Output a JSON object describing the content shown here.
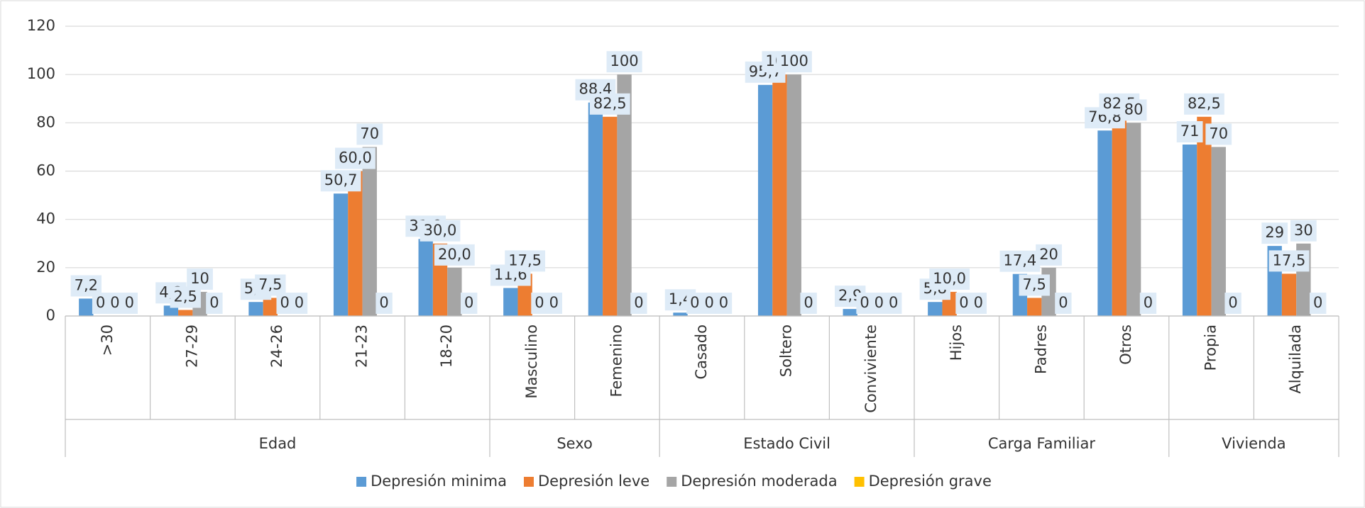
{
  "chart_data": {
    "type": "bar",
    "groups": [
      {
        "name": "Edad",
        "categories": [
          ">30",
          "27-29",
          "24-26",
          "21-23",
          "18-20"
        ]
      },
      {
        "name": "Sexo",
        "categories": [
          "Masculino",
          "Femenino"
        ]
      },
      {
        "name": "Estado Civil",
        "categories": [
          "Casado",
          "Soltero",
          "Conviviente"
        ]
      },
      {
        "name": "Carga  Familiar",
        "categories": [
          "Hijos",
          "Padres",
          "Otros"
        ]
      },
      {
        "name": "Vivienda",
        "categories": [
          "Propia",
          "Alquilada"
        ]
      }
    ],
    "series": [
      {
        "name": "Depresión minima",
        "color": "#5b9bd5",
        "values": [
          7.2,
          4.3,
          5.8,
          50.7,
          31.9,
          11.6,
          88.4,
          1.4,
          95.7,
          2.9,
          5.8,
          17.4,
          76.8,
          71,
          29
        ],
        "value_labels": [
          "7,2",
          "4,3",
          "5,8",
          "50,7",
          "31,9",
          "11,6",
          "88,4",
          "1,4",
          "95,7",
          "2,9",
          "5,8",
          "17,4",
          "76,8",
          "71",
          "29"
        ]
      },
      {
        "name": "Depresión leve",
        "color": "#ed7d31",
        "values": [
          0,
          2.5,
          7.5,
          60.0,
          30.0,
          17.5,
          82.5,
          0,
          100,
          0,
          10.0,
          7.5,
          82.5,
          82.5,
          17.5
        ],
        "value_labels": [
          "0",
          "2,5",
          "7,5",
          "60,0",
          "30,0",
          "17,5",
          "82,5",
          "0",
          "100",
          "0",
          "10,0",
          "7,5",
          "82,5",
          "82,5",
          "17,5"
        ]
      },
      {
        "name": "Depresión moderada",
        "color": "#a5a5a5",
        "values": [
          0,
          10,
          0,
          70,
          20.0,
          0,
          100,
          0,
          100,
          0,
          0,
          20,
          80,
          70,
          30
        ],
        "value_labels": [
          "0",
          "10",
          "0",
          "70",
          "20,0",
          "0",
          "100",
          "0",
          "100",
          "0",
          "0",
          "20",
          "80",
          "70",
          "30"
        ]
      },
      {
        "name": "Depresión grave",
        "color": "#ffc000",
        "values": [
          0,
          0,
          0,
          0,
          0,
          0,
          0,
          0,
          0,
          0,
          0,
          0,
          0,
          0,
          0
        ],
        "value_labels": [
          "0",
          "0",
          "0",
          "0",
          "0",
          "0",
          "0",
          "0",
          "0",
          "0",
          "0",
          "0",
          "0",
          "0",
          "0"
        ]
      }
    ],
    "ylim": [
      0,
      120
    ],
    "yticks": [
      0,
      20,
      40,
      60,
      80,
      100,
      120
    ],
    "grid": true,
    "legend": "bottom"
  }
}
